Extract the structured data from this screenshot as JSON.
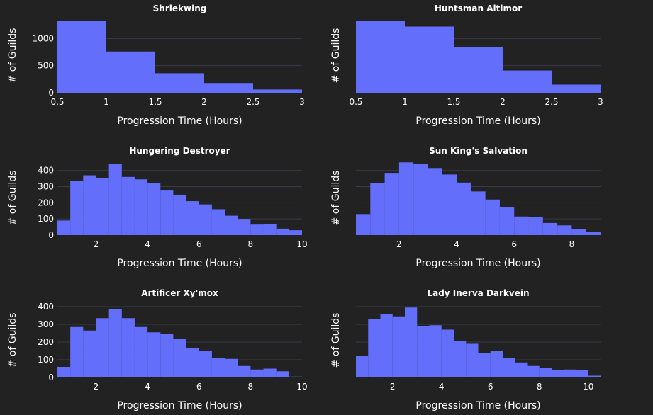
{
  "theme": {
    "background": "#222222",
    "bar_color": "#636efa",
    "grid_color": "#3a3a4a",
    "text_color": "#ffffff"
  },
  "chart_data": [
    {
      "type": "bar",
      "title": "Shriekwing",
      "xlabel": "Progression Time (Hours)",
      "ylabel": "# of Guilds",
      "bin_width": 0.5,
      "x": [
        0.5,
        1.0,
        1.5,
        2.0,
        2.5
      ],
      "values": [
        1320,
        760,
        360,
        180,
        60
      ],
      "xlim": [
        0.5,
        3
      ],
      "ylim": [
        0,
        1370
      ],
      "x_ticks": [
        0.5,
        1,
        1.5,
        2,
        2.5,
        3
      ],
      "x_tick_labels": [
        "0.5",
        "1",
        "1.5",
        "2",
        "2.5",
        "3"
      ],
      "y_ticks": [
        0,
        500,
        1000
      ],
      "y_tick_labels": [
        "0",
        "500",
        "1000"
      ],
      "grid": true
    },
    {
      "type": "bar",
      "title": "Huntsman Altimor",
      "xlabel": "Progression Time (Hours)",
      "ylabel": "# of Guilds",
      "bin_width": 0.5,
      "x": [
        0.5,
        1.0,
        1.5,
        2.0,
        2.5
      ],
      "values": [
        1330,
        1220,
        840,
        410,
        150
      ],
      "xlim": [
        0.5,
        3
      ],
      "ylim": [
        0,
        1370
      ],
      "x_ticks": [
        0.5,
        1,
        1.5,
        2,
        2.5,
        3
      ],
      "x_tick_labels": [
        "0.5",
        "1",
        "1.5",
        "2",
        "2.5",
        "3"
      ],
      "y_ticks": [
        0,
        500,
        1000
      ],
      "y_tick_labels": [
        "",
        "",
        ""
      ],
      "grid": true
    },
    {
      "type": "bar",
      "title": "Hungering Destroyer",
      "xlabel": "Progression Time (Hours)",
      "ylabel": "# of Guilds",
      "bin_width": 0.5,
      "x": [
        0.5,
        1.0,
        1.5,
        2.0,
        2.5,
        3.0,
        3.5,
        4.0,
        4.5,
        5.0,
        5.5,
        6.0,
        6.5,
        7.0,
        7.5,
        8.0,
        8.5,
        9.0,
        9.5
      ],
      "values": [
        90,
        335,
        370,
        355,
        440,
        360,
        345,
        320,
        280,
        250,
        210,
        190,
        160,
        120,
        100,
        65,
        70,
        40,
        30
      ],
      "xlim": [
        0.5,
        10
      ],
      "ylim": [
        0,
        460
      ],
      "x_ticks": [
        2,
        4,
        6,
        8,
        10
      ],
      "x_tick_labels": [
        "2",
        "4",
        "6",
        "8",
        "10"
      ],
      "y_ticks": [
        0,
        100,
        200,
        300,
        400
      ],
      "y_tick_labels": [
        "0",
        "100",
        "200",
        "300",
        "400"
      ],
      "grid": true
    },
    {
      "type": "bar",
      "title": "Sun King's Salvation",
      "xlabel": "Progression Time (Hours)",
      "ylabel": "# of Guilds",
      "bin_width": 0.5,
      "x": [
        0.5,
        1.0,
        1.5,
        2.0,
        2.5,
        3.0,
        3.5,
        4.0,
        4.5,
        5.0,
        5.5,
        6.0,
        6.5,
        7.0,
        7.5,
        8.0,
        8.5
      ],
      "values": [
        130,
        320,
        385,
        450,
        440,
        415,
        375,
        325,
        270,
        220,
        175,
        115,
        110,
        75,
        60,
        35,
        20
      ],
      "xlim": [
        0.5,
        9
      ],
      "ylim": [
        0,
        460
      ],
      "x_ticks": [
        2,
        4,
        6,
        8
      ],
      "x_tick_labels": [
        "2",
        "4",
        "6",
        "8"
      ],
      "y_ticks": [
        0,
        100,
        200,
        300,
        400
      ],
      "y_tick_labels": [
        "",
        "",
        "",
        "",
        ""
      ],
      "grid": true
    },
    {
      "type": "bar",
      "title": "Artificer Xy'mox",
      "xlabel": "Progression Time (Hours)",
      "ylabel": "# of Guilds",
      "bin_width": 0.5,
      "x": [
        0.5,
        1.0,
        1.5,
        2.0,
        2.5,
        3.0,
        3.5,
        4.0,
        4.5,
        5.0,
        5.5,
        6.0,
        6.5,
        7.0,
        7.5,
        8.0,
        8.5,
        9.0,
        9.5
      ],
      "values": [
        60,
        285,
        265,
        335,
        385,
        335,
        285,
        255,
        245,
        220,
        165,
        150,
        110,
        105,
        65,
        45,
        50,
        35,
        5
      ],
      "xlim": [
        0.5,
        10
      ],
      "ylim": [
        0,
        420
      ],
      "x_ticks": [
        2,
        4,
        6,
        8,
        10
      ],
      "x_tick_labels": [
        "2",
        "4",
        "6",
        "8",
        "10"
      ],
      "y_ticks": [
        0,
        100,
        200,
        300,
        400
      ],
      "y_tick_labels": [
        "0",
        "100",
        "200",
        "300",
        "400"
      ],
      "grid": true
    },
    {
      "type": "bar",
      "title": "Lady Inerva Darkvein",
      "xlabel": "Progression Time (Hours)",
      "ylabel": "# of Guilds",
      "bin_width": 0.5,
      "x": [
        0.5,
        1.0,
        1.5,
        2.0,
        2.5,
        3.0,
        3.5,
        4.0,
        4.5,
        5.0,
        5.5,
        6.0,
        6.5,
        7.0,
        7.5,
        8.0,
        8.5,
        9.0,
        9.5,
        10.0
      ],
      "values": [
        120,
        330,
        360,
        345,
        395,
        290,
        295,
        270,
        205,
        190,
        140,
        150,
        110,
        85,
        65,
        55,
        40,
        45,
        40,
        10
      ],
      "xlim": [
        0.5,
        10.5
      ],
      "ylim": [
        0,
        420
      ],
      "x_ticks": [
        2,
        4,
        6,
        8,
        10
      ],
      "x_tick_labels": [
        "2",
        "4",
        "6",
        "8",
        "10"
      ],
      "y_ticks": [
        0,
        100,
        200,
        300,
        400
      ],
      "y_tick_labels": [
        "",
        "",
        "",
        "",
        ""
      ],
      "grid": true
    }
  ]
}
